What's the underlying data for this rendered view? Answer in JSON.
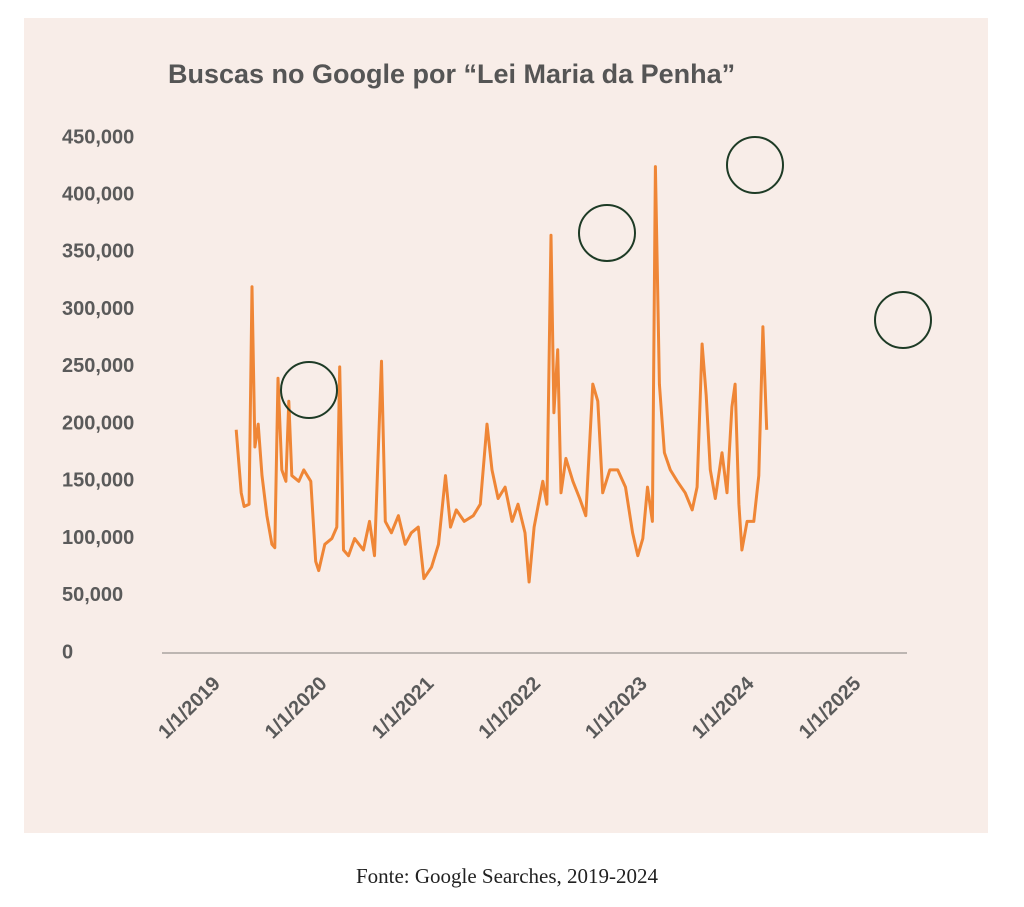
{
  "chart_data": {
    "type": "line",
    "title": "Buscas no Google por “Lei Maria da Penha”",
    "source": "Fonte: Google Searches, 2019-2024",
    "color": "#ef8636",
    "grid": false,
    "x": [
      "2019-03-06",
      "2019-03-23",
      "2019-04-02",
      "2019-04-19",
      "2019-04-29",
      "2019-05-09",
      "2019-05-20",
      "2019-06-02",
      "2019-06-19",
      "2019-07-06",
      "2019-07-16",
      "2019-07-27",
      "2019-08-09",
      "2019-08-23",
      "2019-09-02",
      "2019-09-12",
      "2019-10-06",
      "2019-10-23",
      "2019-11-16",
      "2019-12-03",
      "2019-12-13",
      "2020-01-03",
      "2020-01-27",
      "2020-02-13",
      "2020-02-23",
      "2020-03-07",
      "2020-03-24",
      "2020-04-14",
      "2020-05-14",
      "2020-06-04",
      "2020-06-21",
      "2020-07-15",
      "2020-07-28",
      "2020-08-18",
      "2020-09-11",
      "2020-10-04",
      "2020-10-25",
      "2020-11-18",
      "2020-12-07",
      "2021-01-02",
      "2021-01-26",
      "2021-02-19",
      "2021-03-08",
      "2021-03-28",
      "2021-04-24",
      "2021-05-25",
      "2021-06-18",
      "2021-07-11",
      "2021-07-28",
      "2021-08-18",
      "2021-09-11",
      "2021-10-05",
      "2021-10-25",
      "2021-11-18",
      "2021-12-02",
      "2021-12-19",
      "2022-01-18",
      "2022-02-01",
      "2022-02-15",
      "2022-02-25",
      "2022-03-10",
      "2022-03-21",
      "2022-04-07",
      "2022-05-01",
      "2022-05-24",
      "2022-06-14",
      "2022-07-08",
      "2022-07-25",
      "2022-08-11",
      "2022-09-04",
      "2022-10-01",
      "2022-10-28",
      "2022-11-21",
      "2022-12-09",
      "2022-12-26",
      "2023-01-11",
      "2023-01-28",
      "2023-02-07",
      "2023-02-21",
      "2023-03-10",
      "2023-03-30",
      "2023-04-23",
      "2023-05-20",
      "2023-06-13",
      "2023-06-30",
      "2023-07-17",
      "2023-07-31",
      "2023-08-14",
      "2023-08-31",
      "2023-09-23",
      "2023-10-10",
      "2023-10-27",
      "2023-11-07",
      "2023-11-20",
      "2023-11-30",
      "2023-12-18",
      "2024-01-10",
      "2024-01-27",
      "2024-02-10",
      "2024-02-23"
    ],
    "values": [
      195000,
      140000,
      128000,
      130000,
      320000,
      180000,
      200000,
      155000,
      120000,
      95000,
      92000,
      240000,
      160000,
      150000,
      220000,
      155000,
      150000,
      160000,
      150000,
      80000,
      72000,
      95000,
      100000,
      110000,
      250000,
      90000,
      85000,
      100000,
      90000,
      115000,
      85000,
      255000,
      115000,
      105000,
      120000,
      95000,
      105000,
      110000,
      65000,
      75000,
      95000,
      155000,
      110000,
      125000,
      115000,
      120000,
      130000,
      200000,
      160000,
      135000,
      145000,
      115000,
      130000,
      105000,
      62000,
      110000,
      150000,
      130000,
      365000,
      210000,
      265000,
      140000,
      170000,
      150000,
      135000,
      120000,
      235000,
      220000,
      140000,
      160000,
      160000,
      145000,
      105000,
      85000,
      100000,
      145000,
      115000,
      425000,
      235000,
      175000,
      160000,
      150000,
      140000,
      125000,
      145000,
      270000,
      225000,
      160000,
      135000,
      175000,
      140000,
      215000,
      235000,
      130000,
      90000,
      115000,
      115000,
      155000,
      285000,
      195000
    ],
    "xlim": [
      "2018-06-25",
      "2025-06-17"
    ],
    "xticks": [
      {
        "value": "2019-01-01",
        "label": "1/1/2019"
      },
      {
        "value": "2020-01-01",
        "label": "1/1/2020"
      },
      {
        "value": "2021-01-01",
        "label": "1/1/2021"
      },
      {
        "value": "2022-01-01",
        "label": "1/1/2022"
      },
      {
        "value": "2023-01-01",
        "label": "1/1/2023"
      },
      {
        "value": "2024-01-01",
        "label": "1/1/2024"
      },
      {
        "value": "2025-01-01",
        "label": "1/1/2025"
      }
    ],
    "ylim": [
      0,
      450000
    ],
    "yticks": [
      0,
      {
        "value": 50000,
        "label": "50,000"
      },
      {
        "value": 100000,
        "label": "100,000"
      },
      {
        "value": 150000,
        "label": "150,000"
      },
      {
        "value": 200000,
        "label": "200,000"
      },
      {
        "value": 250000,
        "label": "250,000"
      },
      {
        "value": 300000,
        "label": "300,000"
      },
      {
        "value": 350000,
        "label": "350,000"
      },
      {
        "value": 400000,
        "label": "400,000"
      },
      {
        "value": 450000,
        "label": "450,000"
      }
    ]
  }
}
